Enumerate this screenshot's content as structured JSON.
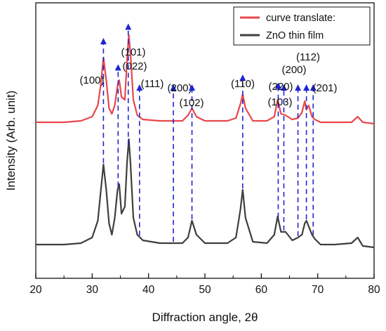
{
  "chart_data": {
    "type": "line",
    "xlabel": "Diffraction angle, 2θ",
    "ylabel": "Intensity (Arb. unit)",
    "xlim": [
      20,
      80
    ],
    "x_ticks": [
      "20",
      "30",
      "40",
      "50",
      "60",
      "70",
      "80"
    ],
    "y_ticks_labeled": false,
    "grid": false,
    "legend_position": "top-right",
    "series": [
      {
        "name": "curve translate:",
        "color": "#e8474b",
        "x": [
          20,
          25,
          28,
          30,
          31,
          31.5,
          32,
          32.5,
          33,
          33.5,
          34,
          34.5,
          34.8,
          35.2,
          35.8,
          36.2,
          36.5,
          36.8,
          37.3,
          38,
          39,
          42,
          46,
          47,
          47.7,
          48.5,
          50,
          54,
          55.5,
          56.3,
          56.7,
          57.2,
          58.5,
          61,
          62.3,
          62.9,
          63.5,
          64.3,
          65.5,
          66.5,
          67.2,
          67.7,
          68,
          68.4,
          69,
          69.5,
          70.5,
          73,
          76,
          77.1,
          78,
          80
        ],
        "y": [
          0.1,
          0.1,
          0.11,
          0.14,
          0.22,
          0.36,
          0.56,
          0.4,
          0.2,
          0.16,
          0.22,
          0.36,
          0.4,
          0.28,
          0.26,
          0.55,
          0.72,
          0.58,
          0.26,
          0.15,
          0.12,
          0.11,
          0.11,
          0.15,
          0.2,
          0.14,
          0.11,
          0.11,
          0.13,
          0.23,
          0.3,
          0.2,
          0.11,
          0.11,
          0.14,
          0.26,
          0.16,
          0.15,
          0.12,
          0.13,
          0.17,
          0.25,
          0.19,
          0.22,
          0.14,
          0.12,
          0.1,
          0.1,
          0.1,
          0.14,
          0.1,
          0.09
        ]
      },
      {
        "name": "ZnO thin film",
        "color": "#3e3e3e",
        "x": [
          20,
          25,
          28,
          30,
          31,
          31.5,
          32,
          32.5,
          33,
          33.5,
          34,
          34.5,
          34.8,
          35.2,
          35.8,
          36.2,
          36.5,
          36.8,
          37.3,
          38,
          39,
          42,
          46,
          47,
          47.7,
          48.5,
          50,
          54,
          55.5,
          56.3,
          56.7,
          57.2,
          58.5,
          61,
          62.3,
          62.9,
          63.5,
          64.3,
          65.5,
          66.5,
          67.2,
          67.7,
          68,
          68.4,
          69,
          69.5,
          70.5,
          73,
          76,
          77.1,
          78,
          80
        ],
        "y": [
          -0.77,
          -0.77,
          -0.76,
          -0.72,
          -0.6,
          -0.4,
          -0.2,
          -0.38,
          -0.62,
          -0.7,
          -0.58,
          -0.38,
          -0.34,
          -0.55,
          -0.5,
          -0.18,
          -0.02,
          -0.2,
          -0.58,
          -0.7,
          -0.74,
          -0.76,
          -0.76,
          -0.72,
          -0.6,
          -0.7,
          -0.76,
          -0.76,
          -0.72,
          -0.52,
          -0.38,
          -0.58,
          -0.75,
          -0.76,
          -0.7,
          -0.57,
          -0.68,
          -0.68,
          -0.74,
          -0.72,
          -0.7,
          -0.62,
          -0.6,
          -0.64,
          -0.7,
          -0.73,
          -0.77,
          -0.77,
          -0.76,
          -0.72,
          -0.78,
          -0.79
        ]
      }
    ],
    "peak_annotations": [
      {
        "label": "(100)",
        "x": 32.0
      },
      {
        "label": "(022)",
        "x": 34.6
      },
      {
        "label": "(101)",
        "x": 36.4
      },
      {
        "label": "(111)",
        "x": 38.4
      },
      {
        "label": "(200)",
        "x": 44.4
      },
      {
        "label": "(102)",
        "x": 47.7
      },
      {
        "label": "(110)",
        "x": 56.7
      },
      {
        "label": "(103)",
        "x": 63.0
      },
      {
        "label": "(220)",
        "x": 64.0
      },
      {
        "label": "(200)",
        "x": 66.5
      },
      {
        "label": "(112)",
        "x": 68.0
      },
      {
        "label": "(201)",
        "x": 69.2
      }
    ],
    "annotation_color": "#1f24d6"
  }
}
